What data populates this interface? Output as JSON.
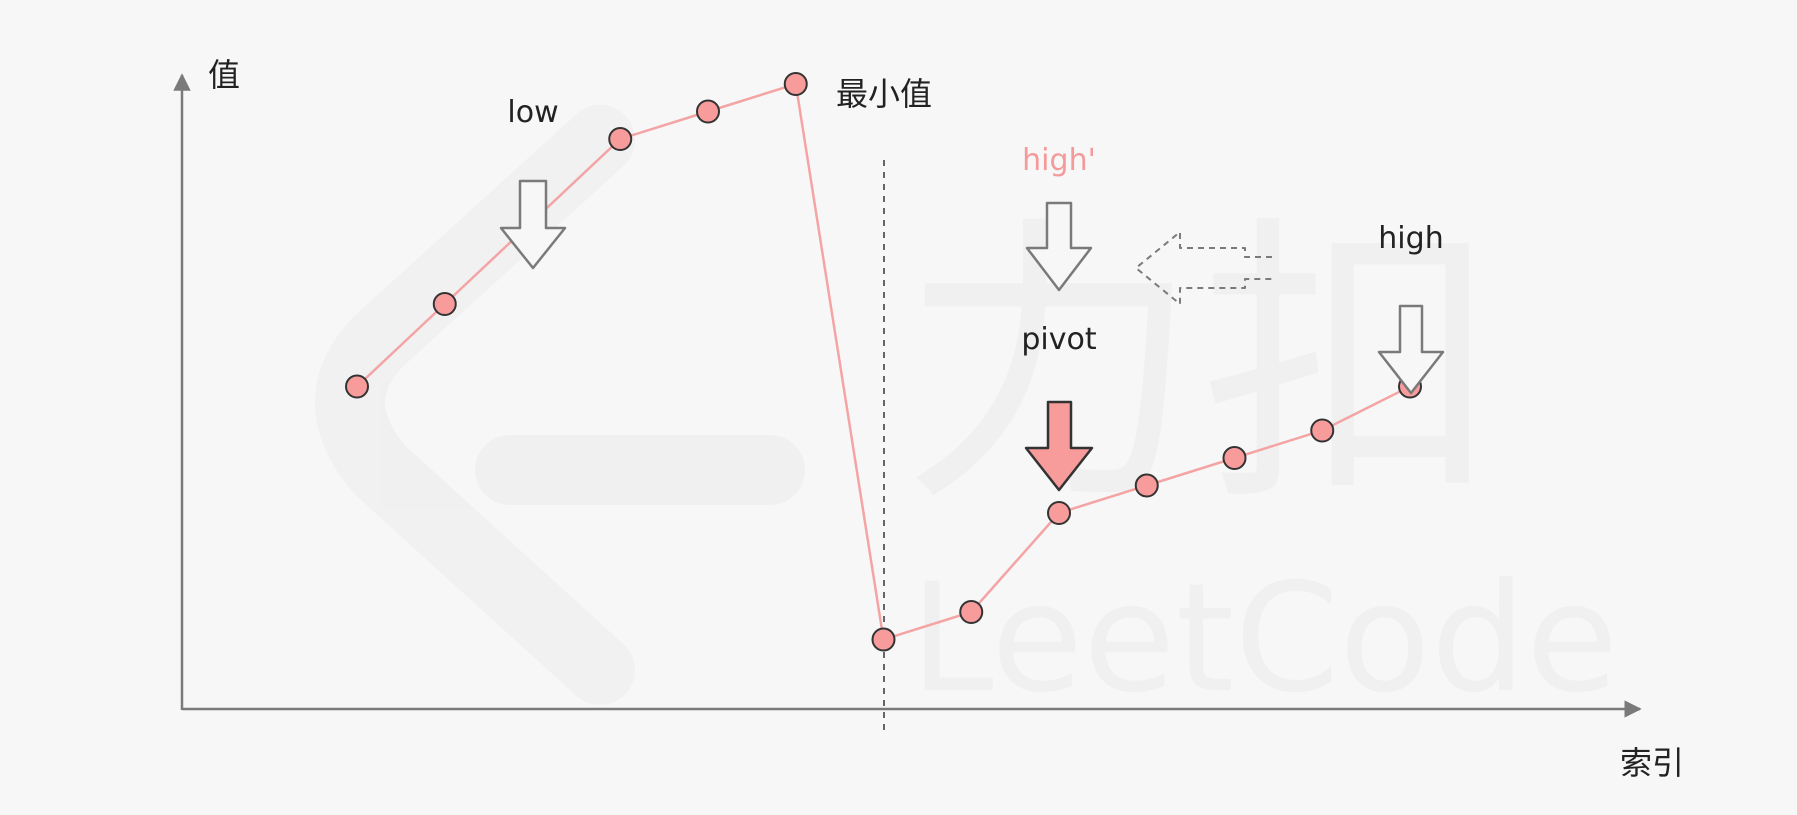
{
  "axes": {
    "y_label": "值",
    "x_label": "索引"
  },
  "labels": {
    "low": "low",
    "minimum": "最小值",
    "high_prime": "high'",
    "high": "high",
    "pivot": "pivot"
  },
  "watermark": {
    "text": "LeetCode",
    "cn_text": "力扣"
  },
  "colors": {
    "background": "#f7f7f7",
    "axis": "#7a7a7a",
    "line": "#f4a4a4",
    "point_fill": "#f79b9b",
    "point_stroke": "#333333",
    "pivot_arrow": "#f79b9b",
    "high_prime_text": "#f59a9a",
    "label_text": "#222222",
    "hollow_arrow": "#7a7a7a"
  },
  "chart_data": {
    "type": "line",
    "title": "",
    "xlabel": "索引",
    "ylabel": "值",
    "series": [
      {
        "x": [
          1,
          2,
          3,
          4,
          5,
          6,
          7,
          8,
          9,
          10,
          11,
          12,
          13
        ],
        "values": [
          6.3,
          7.8,
          9.3,
          10.8,
          11.3,
          11.8,
          1.7,
          2.2,
          4.0,
          4.5,
          5.0,
          5.5,
          6.3
        ]
      }
    ],
    "markers": {
      "minimum_index": 7,
      "low_index": 3,
      "pivot_index": 9,
      "high_index": 13,
      "high_prime_index": 9
    }
  }
}
